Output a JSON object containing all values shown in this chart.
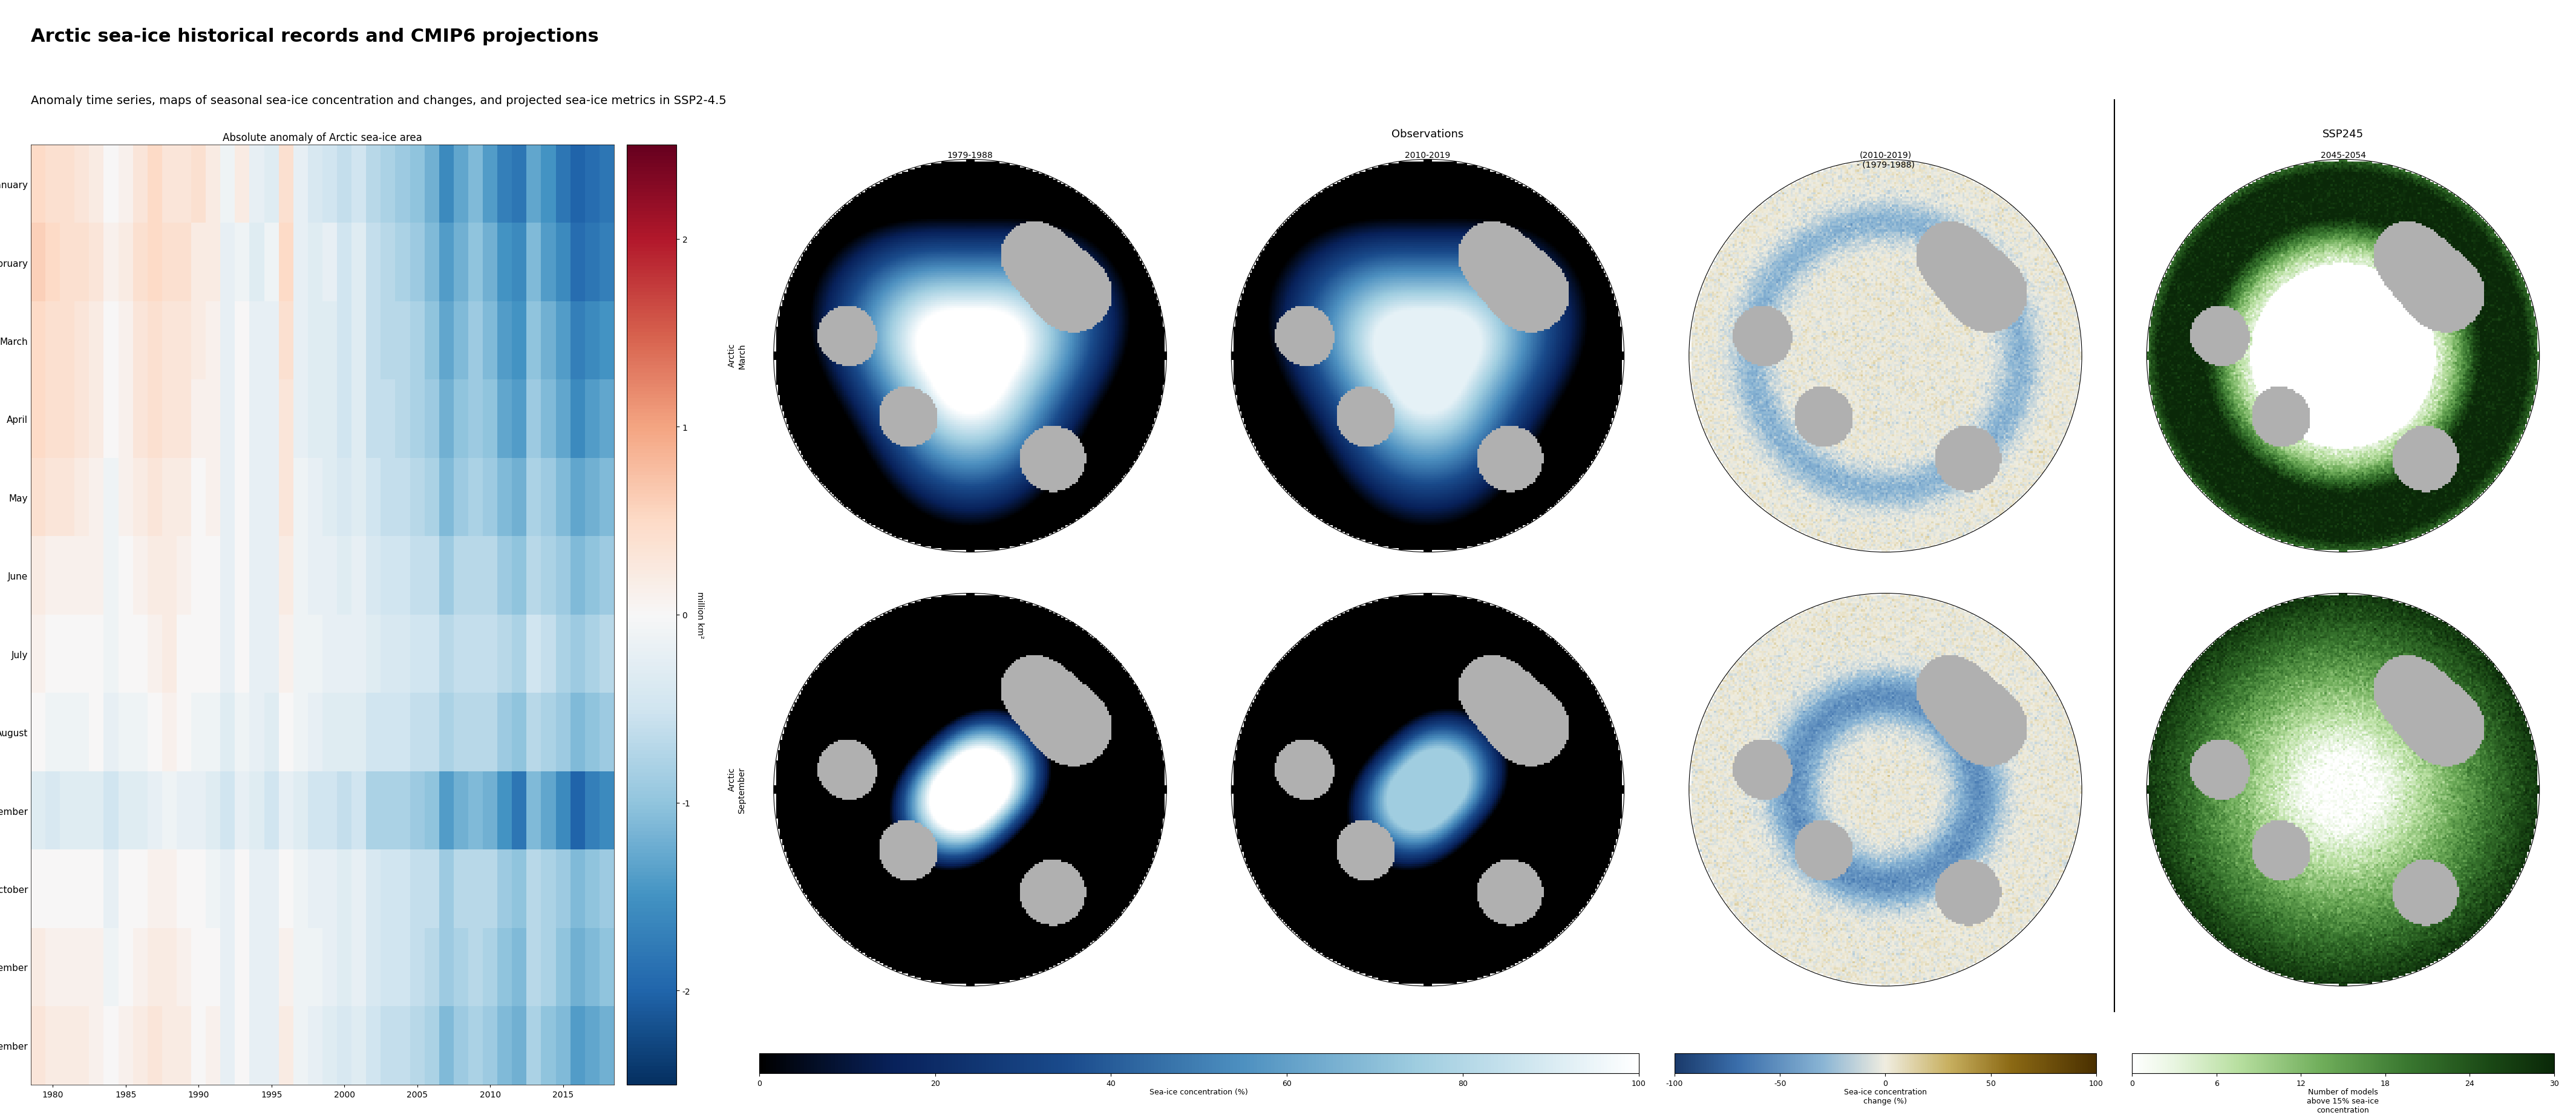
{
  "title": "Arctic sea-ice historical records and CMIP6 projections",
  "subtitle": "Anomaly time series, maps of seasonal sea-ice concentration and changes, and projected sea-ice metrics in SSP2-4.5",
  "heatmap_title": "Absolute anomaly of Arctic sea-ice area",
  "months": [
    "January",
    "February",
    "March",
    "April",
    "May",
    "June",
    "July",
    "August",
    "September",
    "October",
    "November",
    "December"
  ],
  "years": [
    1979,
    1980,
    1981,
    1982,
    1983,
    1984,
    1985,
    1986,
    1987,
    1988,
    1989,
    1990,
    1991,
    1992,
    1993,
    1994,
    1995,
    1996,
    1997,
    1998,
    1999,
    2000,
    2001,
    2002,
    2003,
    2004,
    2005,
    2006,
    2007,
    2008,
    2009,
    2010,
    2011,
    2012,
    2013,
    2014,
    2015,
    2016,
    2017,
    2018
  ],
  "heatmap_data": [
    [
      0.5,
      0.4,
      0.4,
      0.3,
      0.2,
      0.0,
      0.1,
      0.3,
      0.5,
      0.3,
      0.3,
      0.4,
      0.2,
      -0.1,
      0.2,
      -0.2,
      -0.3,
      0.4,
      -0.2,
      -0.4,
      -0.5,
      -0.6,
      -0.5,
      -0.7,
      -0.8,
      -0.9,
      -1.0,
      -1.2,
      -1.6,
      -1.3,
      -1.1,
      -1.4,
      -1.7,
      -1.8,
      -1.3,
      -1.5,
      -1.8,
      -2.0,
      -1.9,
      -1.8
    ],
    [
      0.6,
      0.5,
      0.4,
      0.4,
      0.3,
      0.1,
      0.2,
      0.4,
      0.5,
      0.4,
      0.4,
      0.2,
      0.2,
      -0.2,
      -0.1,
      -0.3,
      -0.1,
      0.5,
      -0.2,
      -0.3,
      -0.2,
      -0.5,
      -0.3,
      -0.6,
      -0.7,
      -0.8,
      -0.9,
      -1.1,
      -1.4,
      -1.2,
      -1.0,
      -1.2,
      -1.5,
      -1.6,
      -1.1,
      -1.4,
      -1.6,
      -1.9,
      -1.8,
      -1.7
    ],
    [
      0.5,
      0.4,
      0.4,
      0.3,
      0.2,
      0.0,
      0.1,
      0.3,
      0.4,
      0.3,
      0.3,
      0.2,
      0.1,
      -0.2,
      -0.0,
      -0.2,
      -0.2,
      0.4,
      -0.2,
      -0.3,
      -0.3,
      -0.5,
      -0.3,
      -0.6,
      -0.7,
      -0.7,
      -0.8,
      -1.0,
      -1.3,
      -1.1,
      -0.9,
      -1.1,
      -1.4,
      -1.5,
      -1.0,
      -1.2,
      -1.4,
      -1.7,
      -1.6,
      -1.5
    ],
    [
      0.5,
      0.4,
      0.4,
      0.3,
      0.2,
      -0.0,
      0.1,
      0.3,
      0.4,
      0.3,
      0.3,
      0.1,
      0.1,
      -0.2,
      -0.0,
      -0.2,
      -0.2,
      0.3,
      -0.2,
      -0.3,
      -0.3,
      -0.5,
      -0.3,
      -0.6,
      -0.6,
      -0.7,
      -0.8,
      -0.9,
      -1.2,
      -1.0,
      -0.9,
      -1.0,
      -1.3,
      -1.4,
      -0.9,
      -1.1,
      -1.3,
      -1.6,
      -1.4,
      -1.3
    ],
    [
      0.4,
      0.3,
      0.3,
      0.2,
      0.1,
      -0.1,
      0.1,
      0.2,
      0.3,
      0.2,
      0.2,
      0.0,
      0.1,
      -0.2,
      0.0,
      -0.2,
      -0.2,
      0.3,
      -0.1,
      -0.2,
      -0.3,
      -0.4,
      -0.3,
      -0.5,
      -0.6,
      -0.6,
      -0.7,
      -0.8,
      -1.1,
      -0.9,
      -0.8,
      -0.9,
      -1.1,
      -1.2,
      -0.8,
      -0.9,
      -1.1,
      -1.3,
      -1.2,
      -1.1
    ],
    [
      0.2,
      0.1,
      0.1,
      0.1,
      0.1,
      -0.1,
      0.0,
      0.1,
      0.2,
      0.2,
      0.1,
      0.0,
      0.0,
      -0.2,
      0.0,
      -0.2,
      -0.2,
      0.2,
      -0.1,
      -0.2,
      -0.2,
      -0.3,
      -0.2,
      -0.4,
      -0.5,
      -0.5,
      -0.6,
      -0.6,
      -0.9,
      -0.7,
      -0.7,
      -0.7,
      -0.9,
      -1.0,
      -0.7,
      -0.8,
      -0.9,
      -1.1,
      -1.0,
      -0.9
    ],
    [
      0.1,
      -0.0,
      0.0,
      -0.0,
      0.0,
      -0.1,
      0.0,
      -0.0,
      0.1,
      0.2,
      0.0,
      -0.0,
      -0.0,
      -0.2,
      0.0,
      -0.2,
      -0.2,
      0.1,
      -0.1,
      -0.1,
      -0.2,
      -0.2,
      -0.2,
      -0.3,
      -0.4,
      -0.4,
      -0.5,
      -0.5,
      -0.7,
      -0.6,
      -0.6,
      -0.6,
      -0.7,
      -0.8,
      -0.5,
      -0.6,
      -0.8,
      -0.9,
      -0.8,
      -0.7
    ],
    [
      -0.0,
      -0.1,
      -0.1,
      -0.1,
      -0.0,
      -0.2,
      -0.1,
      -0.1,
      0.0,
      0.1,
      -0.0,
      -0.1,
      -0.1,
      -0.3,
      -0.1,
      -0.2,
      -0.3,
      -0.0,
      -0.1,
      -0.2,
      -0.3,
      -0.3,
      -0.3,
      -0.5,
      -0.5,
      -0.5,
      -0.6,
      -0.6,
      -0.8,
      -0.7,
      -0.7,
      -0.7,
      -0.9,
      -1.0,
      -0.7,
      -0.8,
      -0.9,
      -1.1,
      -1.0,
      -0.9
    ],
    [
      -0.3,
      -0.4,
      -0.3,
      -0.3,
      -0.3,
      -0.5,
      -0.3,
      -0.3,
      -0.2,
      -0.1,
      -0.2,
      -0.2,
      -0.3,
      -0.5,
      -0.2,
      -0.3,
      -0.5,
      -0.2,
      -0.3,
      -0.5,
      -0.5,
      -0.6,
      -0.5,
      -0.8,
      -0.8,
      -0.8,
      -0.9,
      -1.0,
      -1.4,
      -1.2,
      -1.1,
      -1.2,
      -1.5,
      -1.8,
      -1.1,
      -1.3,
      -1.6,
      -2.0,
      -1.7,
      -1.6
    ],
    [
      -0.0,
      0.0,
      0.0,
      -0.0,
      -0.0,
      -0.2,
      0.0,
      -0.0,
      0.1,
      0.1,
      0.0,
      -0.0,
      -0.1,
      -0.2,
      0.0,
      -0.2,
      -0.2,
      0.0,
      -0.1,
      -0.2,
      -0.2,
      -0.3,
      -0.2,
      -0.4,
      -0.5,
      -0.5,
      -0.6,
      -0.6,
      -0.9,
      -0.7,
      -0.7,
      -0.7,
      -0.9,
      -1.0,
      -0.7,
      -0.8,
      -0.9,
      -1.1,
      -1.0,
      -0.9
    ],
    [
      0.2,
      0.1,
      0.1,
      0.1,
      0.1,
      -0.1,
      0.0,
      0.1,
      0.2,
      0.2,
      0.1,
      -0.0,
      0.0,
      -0.2,
      0.0,
      -0.2,
      -0.2,
      0.1,
      -0.1,
      -0.1,
      -0.2,
      -0.3,
      -0.2,
      -0.4,
      -0.5,
      -0.5,
      -0.6,
      -0.7,
      -0.9,
      -0.8,
      -0.7,
      -0.8,
      -1.0,
      -1.1,
      -0.7,
      -0.8,
      -1.0,
      -1.2,
      -1.1,
      -1.0
    ],
    [
      0.3,
      0.2,
      0.2,
      0.2,
      0.1,
      0.0,
      0.1,
      0.2,
      0.3,
      0.2,
      0.2,
      0.0,
      0.1,
      -0.2,
      0.0,
      -0.2,
      -0.2,
      0.2,
      -0.1,
      -0.2,
      -0.3,
      -0.4,
      -0.3,
      -0.5,
      -0.6,
      -0.6,
      -0.7,
      -0.8,
      -1.1,
      -0.9,
      -0.8,
      -0.9,
      -1.1,
      -1.2,
      -0.8,
      -1.0,
      -1.1,
      -1.4,
      -1.3,
      -1.2
    ]
  ],
  "heatmap_cbar_ticks": [
    -2,
    -1,
    0,
    1,
    2
  ],
  "colorbar_label": "million km²",
  "heatmap_vmin": -2.5,
  "heatmap_vmax": 2.5,
  "xticks": [
    1980,
    1985,
    1990,
    1995,
    2000,
    2005,
    2010,
    2015
  ],
  "obs_header": "Observations",
  "ssp_header": "SSP245",
  "col_label_0": "1979-1988",
  "col_label_1": "2010-2019",
  "col_label_2": "(2010-2019)\n- (1979-1988)",
  "col_label_3": "2045-2054",
  "row_label_0": "Arctic\nMarch",
  "row_label_1": "Arctic\nSeptember",
  "colorbar1_label": "Sea-ice concentration (%)",
  "colorbar1_ticks": [
    0,
    20,
    40,
    60,
    80,
    100
  ],
  "colorbar2_label": "Sea-ice concentration\nchange (%)",
  "colorbar2_ticks": [
    -100,
    -50,
    0,
    50,
    100
  ],
  "colorbar3_label": "Number of models\nabove 15% sea-ice\nconcentration",
  "colorbar3_ticks": [
    0,
    6,
    12,
    18,
    24,
    30
  ],
  "bg": "#ffffff",
  "land_color": "#b0b0b0",
  "ocean_color_conc": "#000000",
  "title_fontsize": 22,
  "subtitle_fontsize": 14,
  "heatmap_title_fontsize": 12,
  "map_label_fontsize": 10
}
